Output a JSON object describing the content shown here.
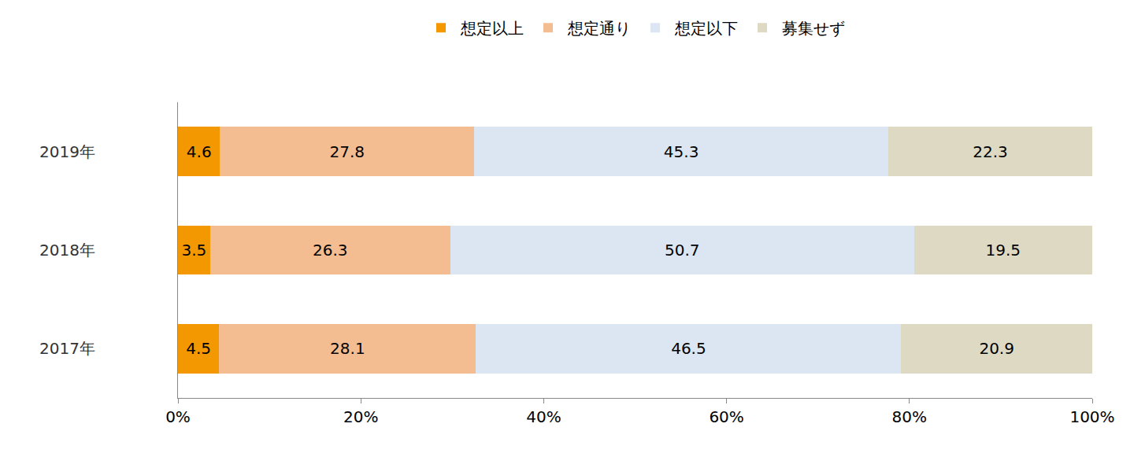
{
  "chart_data": {
    "type": "bar",
    "orientation": "horizontal",
    "stacked": true,
    "data_labels": true,
    "grid": false,
    "legend": "top",
    "categories": [
      "2019年",
      "2018年",
      "2017年"
    ],
    "series": [
      {
        "name": "想定以上",
        "color": "#f39800",
        "values": [
          4.6,
          3.5,
          4.5
        ]
      },
      {
        "name": "想定通り",
        "color": "#f4bc91",
        "values": [
          27.8,
          26.3,
          28.1
        ]
      },
      {
        "name": "想定以下",
        "color": "#dce6f2",
        "values": [
          45.3,
          50.7,
          46.5
        ]
      },
      {
        "name": "募集せず",
        "color": "#ddd9c3",
        "values": [
          22.3,
          19.5,
          20.9
        ]
      }
    ],
    "xlim": [
      0,
      100
    ],
    "xticks": [
      {
        "value": 0,
        "label": "0%"
      },
      {
        "value": 20,
        "label": "20%"
      },
      {
        "value": 40,
        "label": "40%"
      },
      {
        "value": 60,
        "label": "60%"
      },
      {
        "value": 80,
        "label": "80%"
      },
      {
        "value": 100,
        "label": "100%"
      }
    ]
  }
}
